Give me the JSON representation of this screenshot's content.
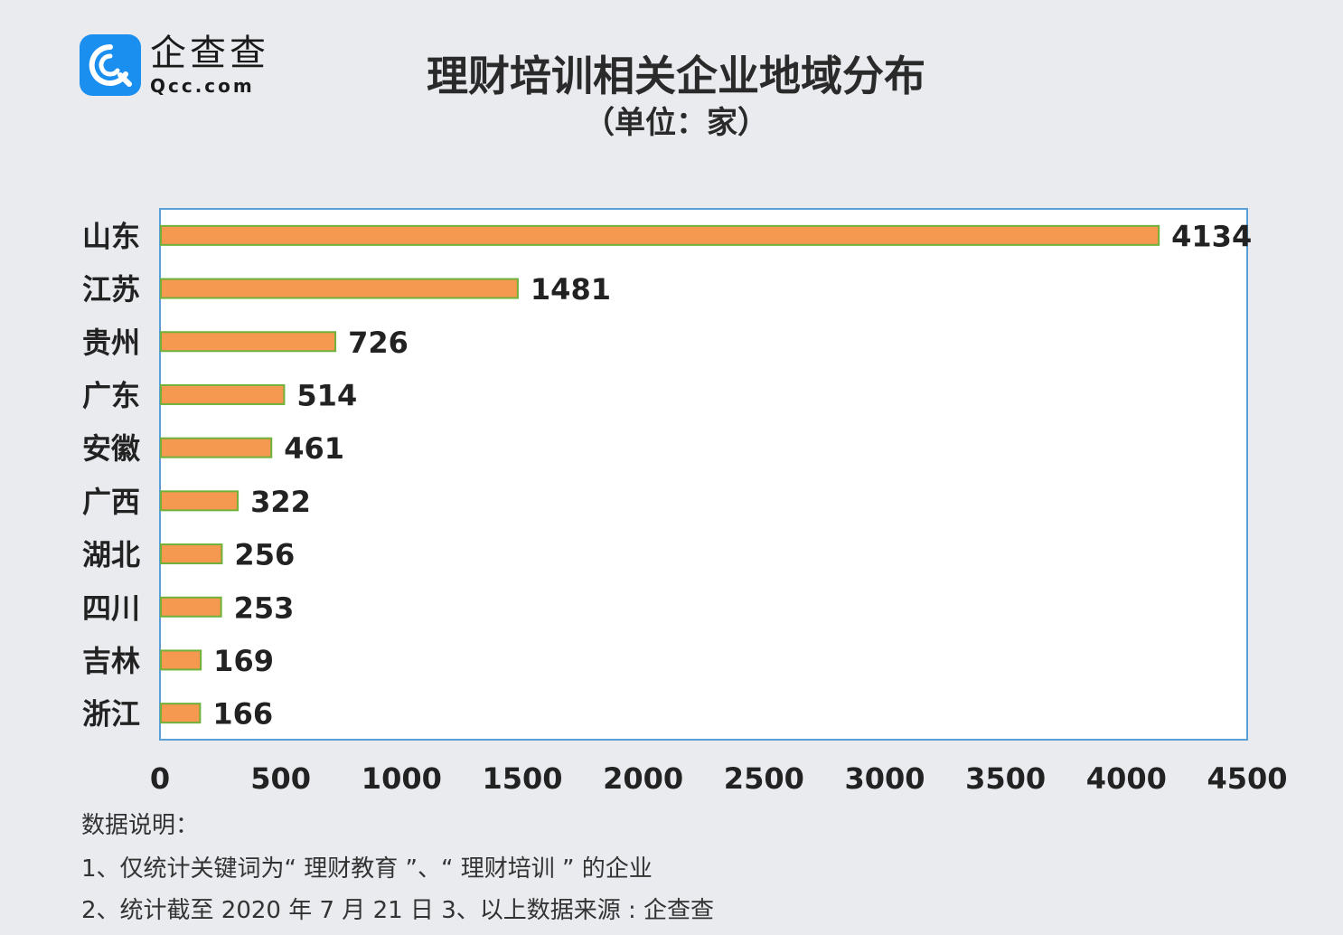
{
  "logo": {
    "name": "企查查",
    "domain": "Qcc.com",
    "icon": "qcc-logo-icon",
    "color": "#1a8ff0"
  },
  "title": "理财培训相关企业地域分布",
  "subtitle": "（单位：家）",
  "chart_data": {
    "type": "bar",
    "orientation": "horizontal",
    "categories": [
      "山东",
      "江苏",
      "贵州",
      "广东",
      "安徽",
      "广西",
      "湖北",
      "四川",
      "吉林",
      "浙江"
    ],
    "values": [
      4134,
      1481,
      726,
      514,
      461,
      322,
      256,
      253,
      169,
      166
    ],
    "data_labels": [
      "4134",
      "1481",
      "726",
      "514",
      "461",
      "322",
      "256",
      "253",
      "169",
      "166"
    ],
    "xlim": [
      0,
      4500
    ],
    "xticks": [
      "0",
      "500",
      "1000",
      "1500",
      "2000",
      "2500",
      "3000",
      "3500",
      "4000",
      "4500"
    ],
    "bar_color": "#f4994f",
    "bar_border_color": "#6fb13a",
    "plot_border_color": "#5a9fd6",
    "grid": false,
    "legend": "none"
  },
  "notes": {
    "heading": "数据说明：",
    "line1": "1、仅统计关键词为“ 理财教育 ”、“ 理财培训 ” 的企业",
    "line2": "2、统计截至 2020 年 7 月 21 日    3、以上数据来源 : 企查查"
  }
}
